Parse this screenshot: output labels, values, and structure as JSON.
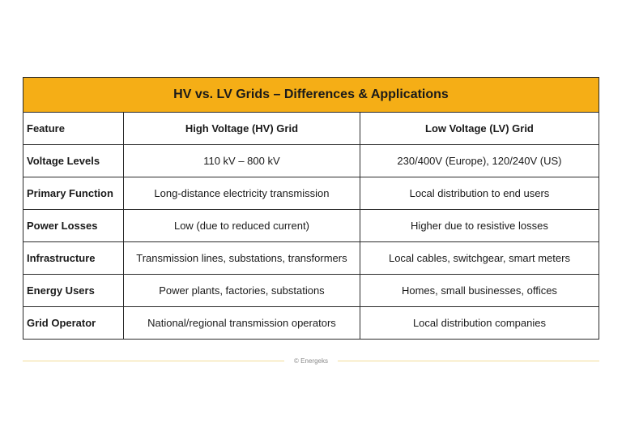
{
  "table": {
    "title": "HV vs. LV Grids – Differences & Applications",
    "headers": [
      "Feature",
      "High Voltage (HV) Grid",
      "Low Voltage (LV) Grid"
    ],
    "rows": [
      [
        "Voltage Levels",
        "110 kV – 800 kV",
        "230/400V (Europe), 120/240V (US)"
      ],
      [
        "Primary Function",
        "Long-distance electricity transmission",
        "Local distribution to end users"
      ],
      [
        "Power Losses",
        "Low (due to reduced current)",
        "Higher due to resistive losses"
      ],
      [
        "Infrastructure",
        "Transmission lines, substations, transformers",
        "Local cables, switchgear, smart meters"
      ],
      [
        "Energy Users",
        "Power plants, factories, substations",
        "Homes, small businesses, offices"
      ],
      [
        "Grid Operator",
        "National/regional transmission operators",
        "Local distribution companies"
      ]
    ]
  },
  "footer": {
    "credit": "© Energeks"
  },
  "colors": {
    "title_background": "#f5ae16",
    "border": "#2b2b2b",
    "footer_line": "#f3dc96"
  }
}
